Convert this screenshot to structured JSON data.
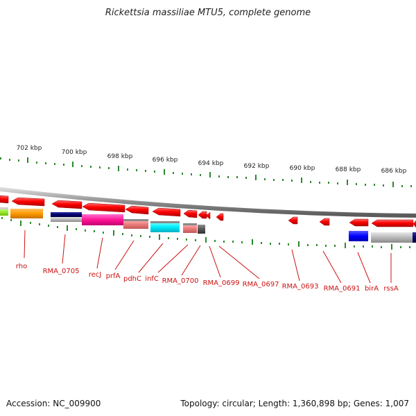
{
  "title": "Rickettsia massiliae MTU5, complete genome",
  "scale_labels": [
    "702 kbp",
    "700 kbp",
    "698 kbp",
    "696 kbp",
    "694 kbp",
    "692 kbp",
    "690 kbp",
    "688 kbp",
    "686 kbp"
  ],
  "gene_labels": [
    "rho",
    "RMA_0705",
    "recJ",
    "prfA",
    "pdhC",
    "infC",
    "RMA_0700",
    "RMA_0699",
    "RMA_0697",
    "RMA_0693",
    "RMA_0691",
    "birA",
    "rssA"
  ],
  "footer": {
    "accession": "Accession: NC_009900",
    "topology": "Topology: circular; Length: 1,360,898 bp; Genes: 1,007"
  },
  "colors": {
    "gene_arrow": "#ff0000",
    "gene_label": "#cc1111",
    "tick": "#2a8a2a",
    "backbone": "#8a8a8a"
  }
}
